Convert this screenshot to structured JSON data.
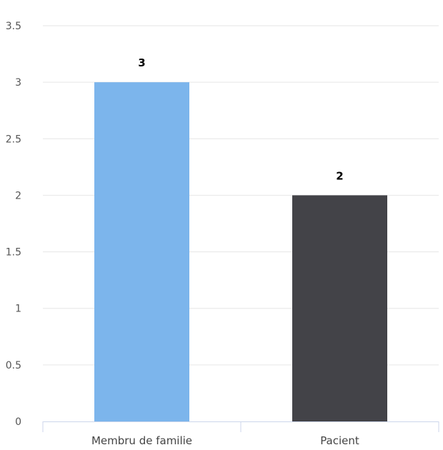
{
  "chart_data": {
    "type": "bar",
    "title": "",
    "xlabel": "",
    "ylabel": "",
    "categories": [
      "Membru de familie",
      "Pacient"
    ],
    "values": [
      3,
      2
    ],
    "data_labels": [
      "3",
      "2"
    ],
    "bar_colors": [
      "#7cb5ec",
      "#434348"
    ],
    "ylim": [
      0,
      3.5
    ],
    "yticks": [
      0,
      0.5,
      1,
      1.5,
      2,
      2.5,
      3,
      3.5
    ],
    "ytick_labels": [
      "0",
      "0.5",
      "1",
      "1.5",
      "2",
      "2.5",
      "3",
      "3.5"
    ],
    "grid": true,
    "legend": "none"
  }
}
